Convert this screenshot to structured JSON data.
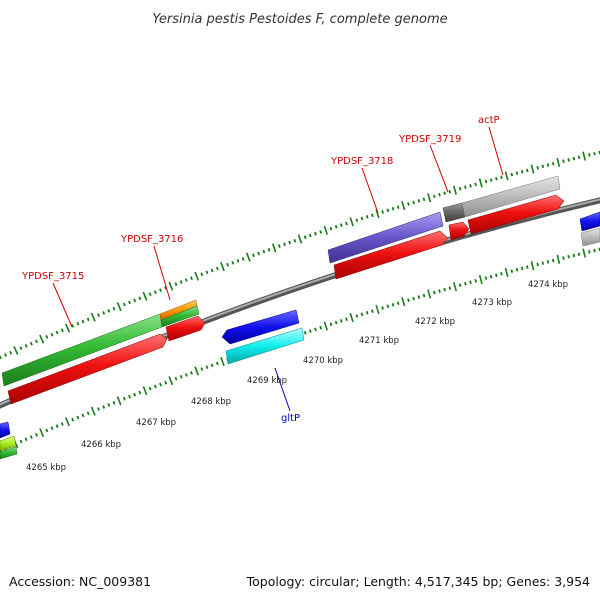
{
  "title": "Yersinia pestis Pestoides F, complete genome",
  "footer": {
    "accession": "Accession: NC_009381",
    "summary": "Topology: circular; Length: 4,517,345 bp; Genes: 3,954"
  },
  "colors": {
    "backbone": "#777777",
    "tick": "#1a7a1a",
    "feature_label": "#cc0000",
    "gene_label": "#0000cc",
    "cds_red": "#ee1111",
    "gene_green": "#33bb33",
    "gene_orange": "#ff9900",
    "gene_purple": "#6655cc",
    "gene_gray": "#bbbbbb",
    "gene_darkgray": "#666666",
    "gene_blue": "#1111ee",
    "gene_cyan": "#11eeee",
    "gene_yellowgreen": "#aaee22"
  },
  "kbp_labels": [
    "4265 kbp",
    "4266 kbp",
    "4267 kbp",
    "4268 kbp",
    "4269 kbp",
    "4270 kbp",
    "4271 kbp",
    "4272 kbp",
    "4273 kbp",
    "4274 kbp"
  ],
  "feature_labels": [
    {
      "text": "YPDSF_3715",
      "kind": "red"
    },
    {
      "text": "YPDSF_3716",
      "kind": "red"
    },
    {
      "text": "YPDSF_3718",
      "kind": "red"
    },
    {
      "text": "YPDSF_3719",
      "kind": "red"
    },
    {
      "text": "actP",
      "kind": "red"
    },
    {
      "text": "gltP",
      "kind": "blue"
    }
  ]
}
